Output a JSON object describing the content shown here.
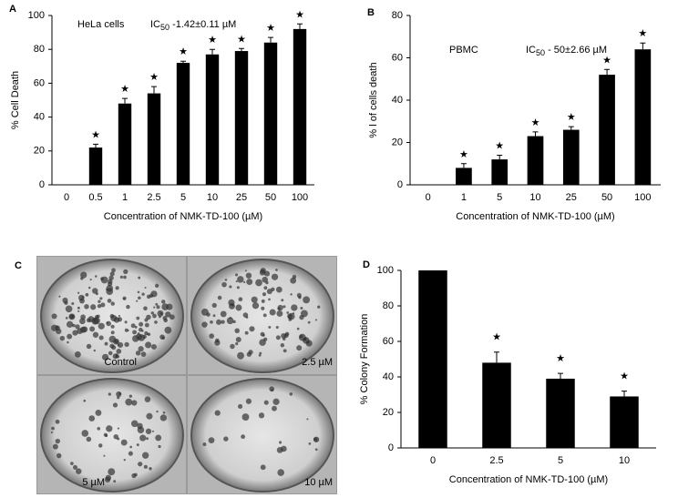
{
  "chart_data": [
    {
      "type": "bar",
      "panel": "A",
      "annotations": [
        "HeLa cells"
      ],
      "ic50": {
        "text": "IC",
        "sub": "50",
        "rest": " -1.42±0.11 µM"
      },
      "categories": [
        "0",
        "0.5",
        "1",
        "2.5",
        "5",
        "10",
        "25",
        "50",
        "100"
      ],
      "values": [
        0,
        22,
        48,
        54,
        72,
        77,
        79,
        84,
        92
      ],
      "errors": [
        null,
        2,
        3,
        4,
        1,
        3,
        1.5,
        3,
        3
      ],
      "markers": [
        null,
        "★",
        "★",
        "★",
        "★",
        "★",
        "★",
        "★",
        "★"
      ],
      "color": "#000000",
      "ylim": [
        0,
        100
      ],
      "yticks": [
        0,
        20,
        40,
        60,
        80,
        100
      ],
      "xlabel": "Concentration of NMK-TD-100 (µM)",
      "ylabel": "% Cell Death"
    },
    {
      "type": "bar",
      "panel": "B",
      "annotations": [
        "PBMC"
      ],
      "ic50": {
        "text": "IC",
        "sub": "50",
        "rest": " - 50±2.66  µM"
      },
      "categories": [
        "0",
        "1",
        "5",
        "10",
        "25",
        "50",
        "100"
      ],
      "values": [
        0,
        8,
        12,
        23,
        26,
        52,
        64
      ],
      "errors": [
        null,
        2,
        2,
        2,
        1.5,
        2.5,
        3
      ],
      "markers": [
        null,
        "★",
        "★",
        "★",
        "★",
        "★",
        "★"
      ],
      "color": "#000000",
      "ylim": [
        0,
        80
      ],
      "yticks": [
        0,
        20,
        40,
        60,
        80
      ],
      "xlabel": "Concentration of NMK-TD-100 (µM)",
      "ylabel": "% l of  cells death"
    },
    {
      "type": "bar",
      "panel": "D",
      "categories": [
        "0",
        "2.5",
        "5",
        "10"
      ],
      "values": [
        100,
        48,
        39,
        29
      ],
      "errors": [
        null,
        6,
        3,
        3
      ],
      "markers": [
        null,
        "★",
        "★",
        "★"
      ],
      "color": "#000000",
      "ylim": [
        0,
        100
      ],
      "yticks": [
        0,
        20,
        40,
        60,
        80,
        100
      ],
      "xlabel": "Concentration of NMK-TD-100 (µM)",
      "ylabel": "% Colony Formation"
    }
  ],
  "panel_c": {
    "label": "C",
    "captions": [
      "Control",
      "2.5 µM",
      "5 µM",
      "10 µM"
    ]
  }
}
